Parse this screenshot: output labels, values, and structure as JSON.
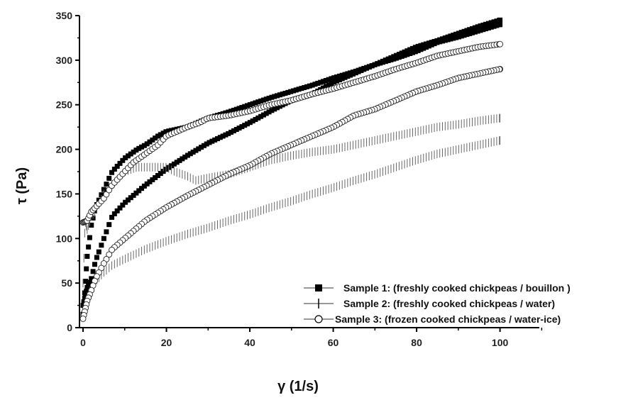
{
  "chart_data": {
    "type": "scatter",
    "xlabel": "γ (1/s)",
    "ylabel": "τ (Pa)",
    "xlim": [
      0,
      110
    ],
    "ylim": [
      0,
      350
    ],
    "xticks": [
      0,
      20,
      40,
      60,
      80,
      100
    ],
    "yticks": [
      0,
      50,
      100,
      150,
      200,
      250,
      300,
      350
    ],
    "grid": false,
    "legend_position": "bottom-right",
    "series": [
      {
        "name": "Sample  1: (freshly cooked chickpeas /  bouillon )",
        "marker": "filled-square",
        "up": [
          [
            0,
            15
          ],
          [
            0.5,
            45
          ],
          [
            1,
            80
          ],
          [
            2,
            115
          ],
          [
            3,
            135
          ],
          [
            5,
            155
          ],
          [
            7,
            175
          ],
          [
            10,
            190
          ],
          [
            13,
            200
          ],
          [
            15,
            205
          ],
          [
            18,
            215
          ],
          [
            20,
            220
          ],
          [
            25,
            225
          ],
          [
            30,
            235
          ],
          [
            35,
            242
          ],
          [
            40,
            250
          ],
          [
            45,
            258
          ],
          [
            50,
            265
          ],
          [
            55,
            272
          ],
          [
            60,
            280
          ],
          [
            65,
            287
          ],
          [
            70,
            295
          ],
          [
            75,
            305
          ],
          [
            80,
            315
          ],
          [
            85,
            322
          ],
          [
            90,
            330
          ],
          [
            95,
            338
          ],
          [
            100,
            345
          ]
        ],
        "down": [
          [
            100,
            340
          ],
          [
            95,
            333
          ],
          [
            90,
            326
          ],
          [
            85,
            320
          ],
          [
            80,
            310
          ],
          [
            75,
            302
          ],
          [
            70,
            295
          ],
          [
            65,
            285
          ],
          [
            60,
            275
          ],
          [
            55,
            262
          ],
          [
            50,
            255
          ],
          [
            45,
            243
          ],
          [
            40,
            230
          ],
          [
            35,
            218
          ],
          [
            30,
            207
          ],
          [
            25,
            193
          ],
          [
            20,
            178
          ],
          [
            15,
            160
          ],
          [
            10,
            140
          ],
          [
            7,
            125
          ],
          [
            5,
            100
          ],
          [
            3,
            75
          ],
          [
            2,
            55
          ],
          [
            1,
            45
          ],
          [
            0.5,
            35
          ],
          [
            0,
            25
          ]
        ]
      },
      {
        "name": "Sample 2: (freshly cooked chickpeas /  water)",
        "marker": "vertical-dash",
        "up": [
          [
            0,
            50
          ],
          [
            0.5,
            120
          ],
          [
            1,
            110
          ],
          [
            2,
            125
          ],
          [
            3,
            130
          ],
          [
            5,
            150
          ],
          [
            7,
            160
          ],
          [
            10,
            175
          ],
          [
            13,
            180
          ],
          [
            15,
            180
          ],
          [
            18,
            180
          ],
          [
            20,
            180
          ],
          [
            22,
            175
          ],
          [
            25,
            170
          ],
          [
            27,
            165
          ],
          [
            30,
            168
          ],
          [
            35,
            172
          ],
          [
            40,
            180
          ],
          [
            45,
            188
          ],
          [
            50,
            193
          ],
          [
            55,
            197
          ],
          [
            60,
            200
          ],
          [
            65,
            205
          ],
          [
            70,
            210
          ],
          [
            75,
            215
          ],
          [
            80,
            220
          ],
          [
            85,
            225
          ],
          [
            90,
            228
          ],
          [
            95,
            232
          ],
          [
            100,
            235
          ]
        ],
        "down": [
          [
            100,
            210
          ],
          [
            95,
            205
          ],
          [
            90,
            200
          ],
          [
            85,
            195
          ],
          [
            80,
            188
          ],
          [
            75,
            180
          ],
          [
            70,
            172
          ],
          [
            65,
            165
          ],
          [
            60,
            157
          ],
          [
            55,
            150
          ],
          [
            50,
            142
          ],
          [
            45,
            135
          ],
          [
            40,
            127
          ],
          [
            35,
            120
          ],
          [
            30,
            112
          ],
          [
            25,
            105
          ],
          [
            20,
            97
          ],
          [
            15,
            88
          ],
          [
            10,
            77
          ],
          [
            7,
            70
          ],
          [
            5,
            62
          ],
          [
            3,
            52
          ],
          [
            2,
            45
          ],
          [
            1,
            35
          ],
          [
            0,
            20
          ]
        ]
      },
      {
        "name": "Sample  3: (frozen cooked chickpeas / water-ice)",
        "marker": "open-circle",
        "up": [
          [
            0,
            118
          ],
          [
            1,
            120
          ],
          [
            2,
            130
          ],
          [
            3,
            135
          ],
          [
            5,
            145
          ],
          [
            7,
            160
          ],
          [
            10,
            175
          ],
          [
            12,
            185
          ],
          [
            15,
            195
          ],
          [
            18,
            205
          ],
          [
            20,
            215
          ],
          [
            25,
            225
          ],
          [
            28,
            230
          ],
          [
            30,
            235
          ],
          [
            35,
            238
          ],
          [
            40,
            243
          ],
          [
            45,
            250
          ],
          [
            50,
            255
          ],
          [
            55,
            262
          ],
          [
            60,
            268
          ],
          [
            65,
            275
          ],
          [
            70,
            282
          ],
          [
            75,
            290
          ],
          [
            80,
            297
          ],
          [
            85,
            305
          ],
          [
            90,
            310
          ],
          [
            95,
            315
          ],
          [
            100,
            318
          ]
        ],
        "down": [
          [
            100,
            290
          ],
          [
            95,
            285
          ],
          [
            90,
            280
          ],
          [
            85,
            272
          ],
          [
            80,
            265
          ],
          [
            75,
            255
          ],
          [
            70,
            245
          ],
          [
            65,
            238
          ],
          [
            60,
            225
          ],
          [
            55,
            215
          ],
          [
            50,
            205
          ],
          [
            45,
            195
          ],
          [
            40,
            182
          ],
          [
            35,
            172
          ],
          [
            30,
            160
          ],
          [
            25,
            148
          ],
          [
            20,
            135
          ],
          [
            15,
            120
          ],
          [
            10,
            100
          ],
          [
            7,
            88
          ],
          [
            5,
            72
          ],
          [
            3,
            55
          ],
          [
            2,
            42
          ],
          [
            1,
            30
          ],
          [
            0,
            10
          ]
        ]
      }
    ]
  }
}
